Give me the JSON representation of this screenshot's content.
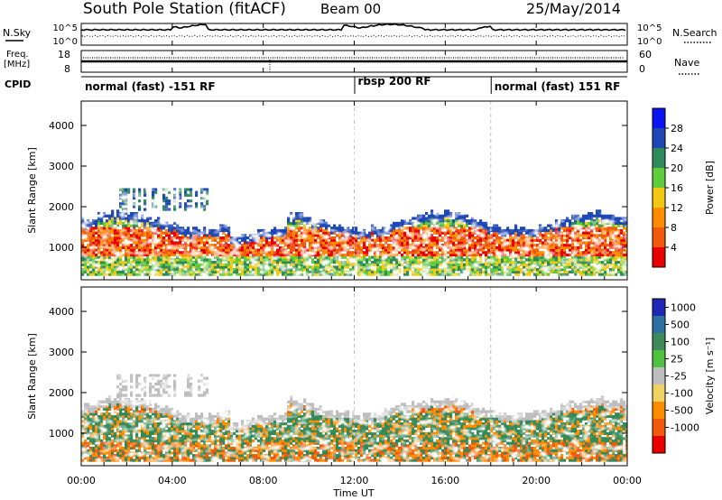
{
  "header": {
    "title": "South Pole Station (fitACF)",
    "beam": "Beam 00",
    "date": "25/May/2014"
  },
  "strip_labels": {
    "nsky": "N.Sky",
    "freq": "Freq.",
    "freq_unit": "[MHz]",
    "cpid": "CPID",
    "nsearch": "N.Search",
    "nave": "Nave"
  },
  "chart_data": [
    {
      "type": "line",
      "name": "nsky-nsearch-strip",
      "left_scale": [
        "10^5",
        "10^0"
      ],
      "right_scale": [
        "10^5",
        "10^0"
      ]
    },
    {
      "type": "line",
      "name": "freq-nave-strip",
      "left_ticks": [
        "18",
        "8"
      ],
      "right_ticks": [
        "60",
        "0"
      ]
    },
    {
      "type": "table",
      "name": "cpid-strip",
      "segments": [
        {
          "label": "normal (fast) -151 RF",
          "start_hour": 0,
          "end_hour": 12
        },
        {
          "label": "rbsp 200 RF",
          "start_hour": 12,
          "end_hour": 18
        },
        {
          "label": "normal (fast) 151 RF",
          "start_hour": 18,
          "end_hour": 24
        }
      ]
    },
    {
      "type": "heatmap",
      "name": "power-panel",
      "ylabel": "Slant Range [km]",
      "yticks": [
        "1000",
        "2000",
        "3000",
        "4000"
      ],
      "ylim": [
        200,
        4600
      ],
      "colorbar_label": "Power [dB]",
      "colorbar_ticks": [
        "4",
        "8",
        "12",
        "16",
        "20",
        "24",
        "28"
      ],
      "colorbar_colors": [
        "#0a14f0",
        "#1e46b4",
        "#2e8a5a",
        "#5fcc3c",
        "#f0c814",
        "#ff8c00",
        "#f05a0a",
        "#e80000"
      ]
    },
    {
      "type": "heatmap",
      "name": "velocity-panel",
      "ylabel": "Slant Range [km]",
      "yticks": [
        "1000",
        "2000",
        "3000",
        "4000"
      ],
      "ylim": [
        200,
        4600
      ],
      "colorbar_label": "Velocity [m s⁻¹]",
      "colorbar_ticks": [
        "1000",
        "500",
        "100",
        "25",
        "-25",
        "-100",
        "-500",
        "-1000"
      ],
      "colorbar_colors": [
        "#1e28b4",
        "#2e70a0",
        "#3e8a5a",
        "#50c040",
        "#bebebe",
        "#f0d264",
        "#ff8c00",
        "#f05a0a",
        "#e80000"
      ]
    }
  ],
  "xaxis": {
    "ticks": [
      "00:00",
      "04:00",
      "08:00",
      "12:00",
      "16:00",
      "20:00",
      "00:00"
    ],
    "label": "Time UT"
  }
}
